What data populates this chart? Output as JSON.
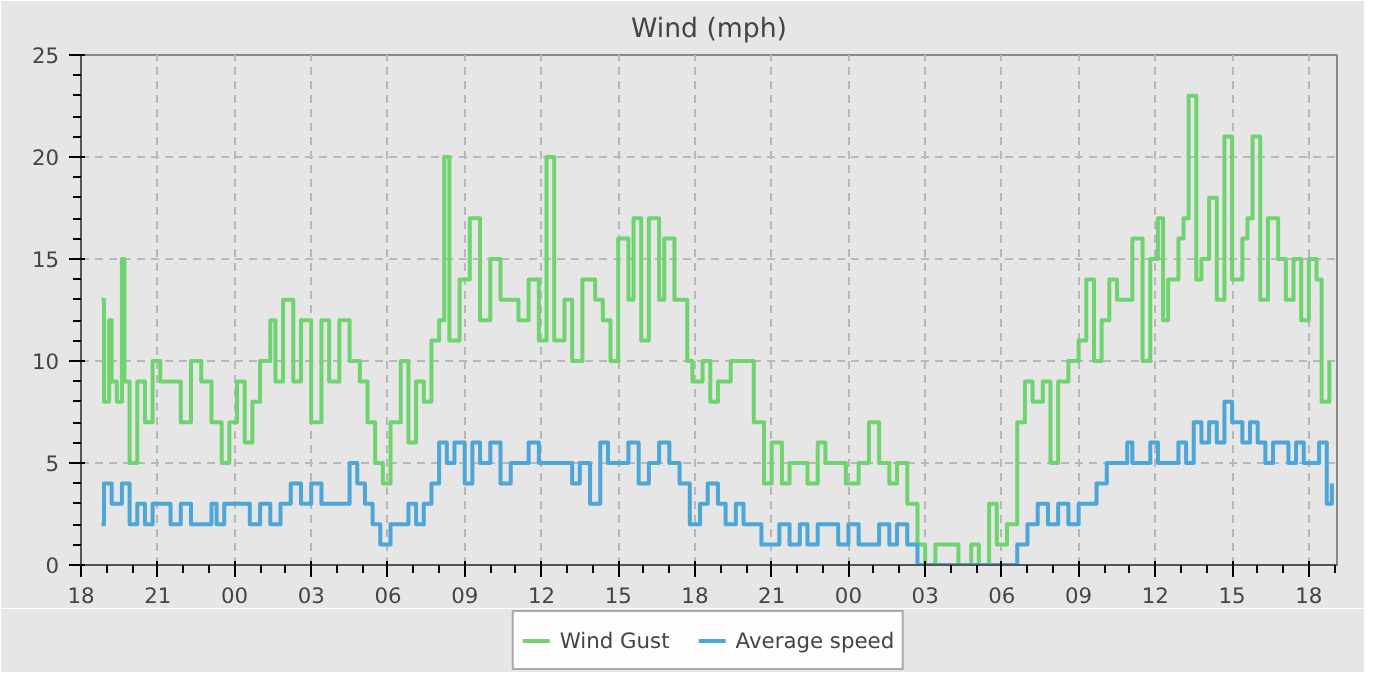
{
  "chart_data": {
    "type": "step",
    "title": "Wind (mph)",
    "xlim": [
      18,
      67.1
    ],
    "ylim": [
      0,
      25
    ],
    "xticks": [
      {
        "value": 18,
        "label": "18"
      },
      {
        "value": 21,
        "label": "21"
      },
      {
        "value": 24,
        "label": "00"
      },
      {
        "value": 27,
        "label": "03"
      },
      {
        "value": 30,
        "label": "06"
      },
      {
        "value": 33,
        "label": "09"
      },
      {
        "value": 36,
        "label": "12"
      },
      {
        "value": 39,
        "label": "15"
      },
      {
        "value": 42,
        "label": "18"
      },
      {
        "value": 45,
        "label": "21"
      },
      {
        "value": 48,
        "label": "00"
      },
      {
        "value": 51,
        "label": "03"
      },
      {
        "value": 54,
        "label": "06"
      },
      {
        "value": 57,
        "label": "09"
      },
      {
        "value": 60,
        "label": "12"
      },
      {
        "value": 63,
        "label": "15"
      },
      {
        "value": 66,
        "label": "18"
      }
    ],
    "yticks": [
      0,
      5,
      10,
      15,
      20,
      25
    ],
    "grid": true,
    "legend": "bottom",
    "line_style": "solid",
    "series": [
      {
        "name": "Wind Gust",
        "color": "#6fd46f",
        "x": [
          18.8,
          18.9,
          19.1,
          19.2,
          19.4,
          19.6,
          19.7,
          19.9,
          20.2,
          20.5,
          20.8,
          21.1,
          21.5,
          21.9,
          22.3,
          22.7,
          23.1,
          23.5,
          23.8,
          24.1,
          24.4,
          24.7,
          25.0,
          25.4,
          25.6,
          25.9,
          26.3,
          26.6,
          27.0,
          27.4,
          27.7,
          28.1,
          28.5,
          28.9,
          29.2,
          29.5,
          29.8,
          30.1,
          30.5,
          30.8,
          31.1,
          31.4,
          31.7,
          32.0,
          32.2,
          32.4,
          32.8,
          33.2,
          33.6,
          34.0,
          34.4,
          34.8,
          35.1,
          35.5,
          35.9,
          36.2,
          36.5,
          36.9,
          37.2,
          37.6,
          38.1,
          38.4,
          38.7,
          39.0,
          39.4,
          39.6,
          39.9,
          40.2,
          40.6,
          40.8,
          41.2,
          41.7,
          41.9,
          42.3,
          42.6,
          42.9,
          43.4,
          43.7,
          44.3,
          44.7,
          45.0,
          45.4,
          45.7,
          46.1,
          46.4,
          46.8,
          47.1,
          47.6,
          47.9,
          48.4,
          48.8,
          49.2,
          49.6,
          49.9,
          50.3,
          50.7,
          51.0,
          51.4,
          51.9,
          52.3,
          52.8,
          53.1,
          53.5,
          53.8,
          54.2,
          54.6,
          54.9,
          55.2,
          55.6,
          55.9,
          56.2,
          56.6,
          57.0,
          57.3,
          57.6,
          57.9,
          58.2,
          58.5,
          58.8,
          59.1,
          59.5,
          59.8,
          60.1,
          60.3,
          60.5,
          60.9,
          61.1,
          61.3,
          61.6,
          61.8,
          62.1,
          62.4,
          62.7,
          63.0,
          63.4,
          63.6,
          63.8,
          64.1,
          64.4,
          64.8,
          65.1,
          65.4,
          65.7,
          66.0,
          66.3,
          66.5,
          66.8
        ],
        "values": [
          13,
          8,
          12,
          9,
          8,
          15,
          9,
          5,
          9,
          7,
          10,
          9,
          9,
          7,
          10,
          9,
          7,
          5,
          7,
          9,
          6,
          8,
          10,
          12,
          9,
          13,
          9,
          12,
          7,
          12,
          9,
          12,
          10,
          9,
          7,
          5,
          4,
          7,
          10,
          6,
          9,
          8,
          11,
          12,
          20,
          11,
          14,
          17,
          12,
          15,
          13,
          13,
          12,
          14,
          11,
          20,
          11,
          13,
          10,
          14,
          13,
          12,
          10,
          16,
          13,
          17,
          11,
          17,
          13,
          16,
          13,
          10,
          9,
          10,
          8,
          9,
          10,
          10,
          7,
          4,
          6,
          4,
          5,
          5,
          4,
          6,
          5,
          5,
          4,
          5,
          7,
          5,
          4,
          5,
          3,
          1,
          0,
          1,
          1,
          0,
          1,
          0,
          3,
          1,
          2,
          7,
          9,
          8,
          9,
          5,
          9,
          10,
          11,
          14,
          10,
          12,
          14,
          13,
          13,
          16,
          10,
          15,
          17,
          12,
          14,
          16,
          17,
          23,
          14,
          15,
          18,
          13,
          21,
          14,
          16,
          17,
          21,
          13,
          17,
          15,
          13,
          15,
          12,
          15,
          14,
          8,
          10
        ]
      },
      {
        "name": "Average speed",
        "color": "#4ca6d8",
        "x": [
          18.8,
          18.9,
          19.2,
          19.6,
          19.9,
          20.2,
          20.5,
          20.8,
          21.1,
          21.5,
          21.9,
          22.3,
          22.7,
          23.1,
          23.3,
          23.6,
          24.1,
          24.6,
          25.0,
          25.4,
          25.8,
          26.2,
          26.6,
          27.0,
          27.4,
          27.7,
          28.1,
          28.5,
          28.8,
          29.1,
          29.4,
          29.7,
          30.1,
          30.5,
          30.8,
          31.1,
          31.4,
          31.7,
          32.0,
          32.3,
          32.6,
          33.0,
          33.3,
          33.6,
          34.0,
          34.4,
          34.8,
          35.1,
          35.5,
          35.9,
          36.4,
          36.9,
          37.2,
          37.5,
          37.9,
          38.3,
          38.6,
          39.0,
          39.4,
          39.8,
          40.2,
          40.6,
          41.0,
          41.4,
          41.8,
          42.2,
          42.5,
          42.9,
          43.2,
          43.6,
          43.9,
          44.3,
          44.6,
          45.0,
          45.3,
          45.7,
          46.1,
          46.4,
          46.8,
          47.2,
          47.6,
          48.0,
          48.4,
          48.8,
          49.2,
          49.6,
          49.9,
          50.3,
          50.7,
          51.5,
          52.3,
          53.1,
          53.5,
          53.8,
          54.2,
          54.6,
          55.0,
          55.4,
          55.8,
          56.2,
          56.6,
          57.0,
          57.4,
          57.7,
          58.1,
          58.5,
          58.9,
          59.1,
          59.5,
          59.8,
          60.1,
          60.5,
          60.9,
          61.2,
          61.5,
          61.8,
          62.1,
          62.4,
          62.7,
          63.0,
          63.4,
          63.7,
          64.0,
          64.3,
          64.6,
          64.9,
          65.2,
          65.5,
          65.8,
          66.1,
          66.4,
          66.7,
          66.9
        ],
        "values": [
          2,
          4,
          3,
          4,
          2,
          3,
          2,
          3,
          3,
          2,
          3,
          2,
          2,
          3,
          2,
          3,
          3,
          2,
          3,
          2,
          3,
          4,
          3,
          4,
          3,
          3,
          3,
          5,
          4,
          3,
          2,
          1,
          2,
          2,
          3,
          2,
          3,
          4,
          6,
          5,
          6,
          4,
          6,
          5,
          6,
          4,
          5,
          5,
          6,
          5,
          5,
          5,
          4,
          5,
          3,
          6,
          5,
          5,
          6,
          4,
          5,
          6,
          5,
          4,
          2,
          3,
          4,
          3,
          2,
          3,
          2,
          2,
          1,
          1,
          2,
          1,
          2,
          1,
          2,
          2,
          1,
          2,
          1,
          1,
          2,
          1,
          2,
          1,
          0,
          0,
          0,
          0,
          0,
          0,
          0,
          1,
          2,
          3,
          2,
          3,
          2,
          3,
          3,
          4,
          5,
          5,
          6,
          5,
          5,
          6,
          5,
          5,
          6,
          5,
          7,
          6,
          7,
          6,
          8,
          7,
          6,
          7,
          6,
          5,
          6,
          6,
          5,
          6,
          5,
          5,
          6,
          3,
          4
        ]
      }
    ]
  }
}
